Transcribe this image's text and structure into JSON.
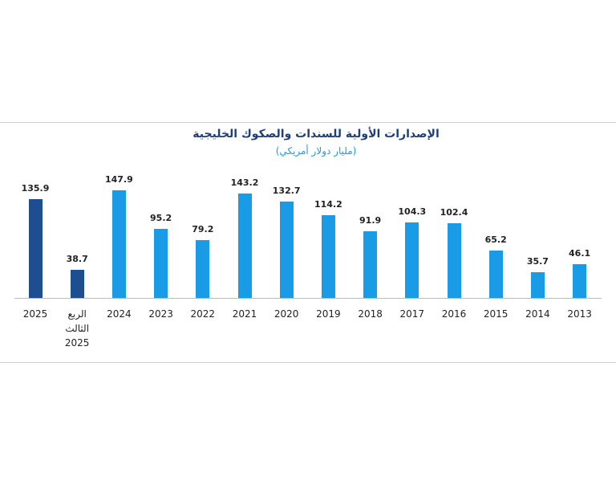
{
  "chart_data": {
    "type": "bar",
    "title": "الإصدارات الأولية للسندات والصكوك الخليجية",
    "subtitle": "(مليار دولار أمريكي)",
    "categories": [
      "2025",
      "الربع\nالثالث\n2025",
      "2024",
      "2023",
      "2022",
      "2021",
      "2020",
      "2019",
      "2018",
      "2017",
      "2016",
      "2015",
      "2014",
      "2013"
    ],
    "values": [
      135.9,
      38.7,
      147.9,
      95.2,
      79.2,
      143.2,
      132.7,
      114.2,
      91.9,
      104.3,
      102.4,
      65.2,
      35.7,
      46.1
    ],
    "colors": [
      "#1d4e8f",
      "#1d4e8f",
      "#1a9be6",
      "#1a9be6",
      "#1a9be6",
      "#1a9be6",
      "#1a9be6",
      "#1a9be6",
      "#1a9be6",
      "#1a9be6",
      "#1a9be6",
      "#1a9be6",
      "#1a9be6",
      "#1a9be6"
    ]
  }
}
